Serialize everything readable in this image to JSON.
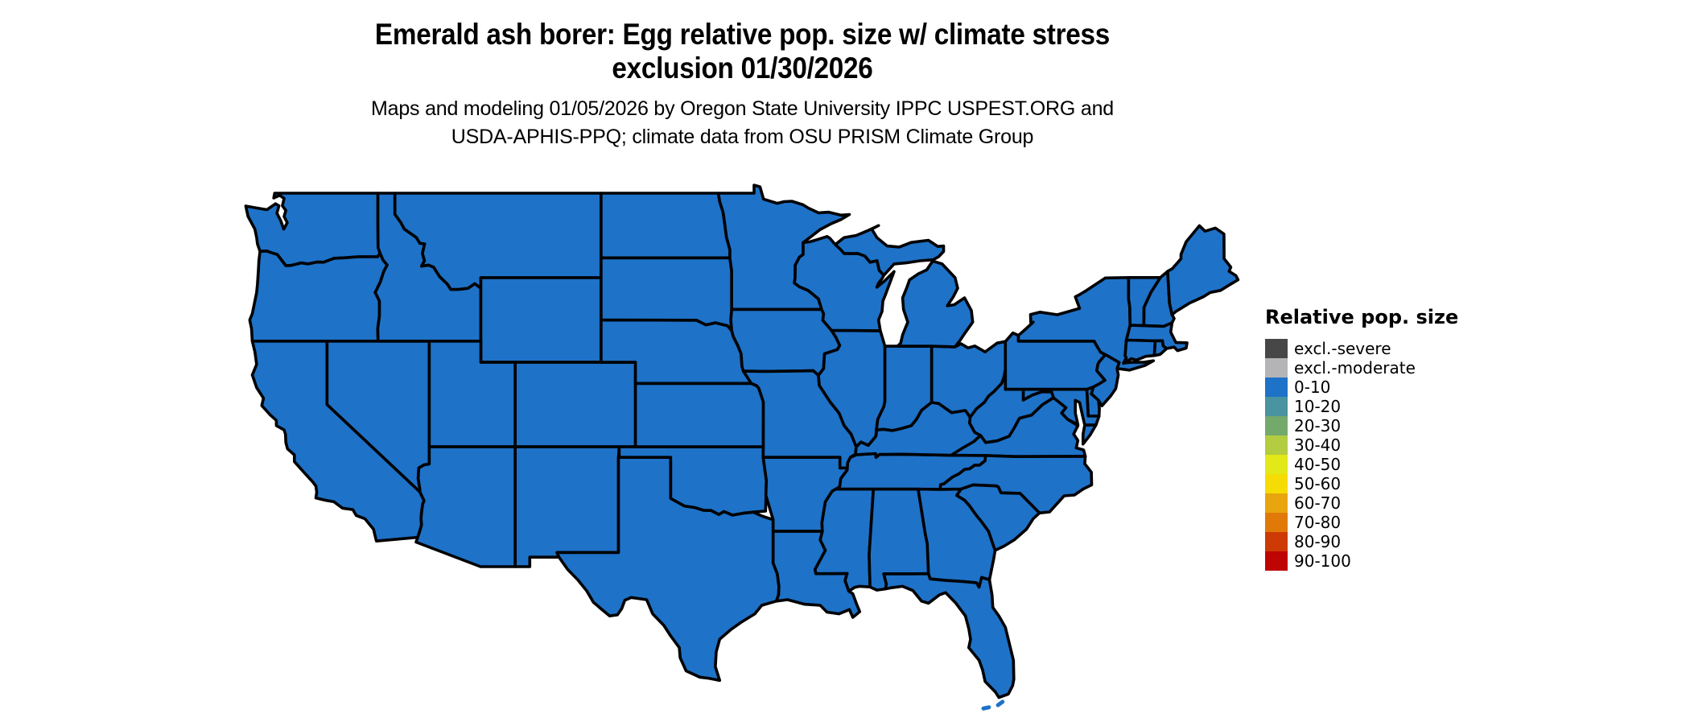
{
  "title": {
    "line1": "Emerald ash borer: Egg relative pop. size w/ climate stress",
    "line2": "exclusion 01/30/2026"
  },
  "subtitle": {
    "line1": "Maps and modeling 01/05/2026 by Oregon State University IPPC USPEST.ORG and",
    "line2": "USDA-APHIS-PPQ; climate data from OSU PRISM Climate Group"
  },
  "legend": {
    "title": "Relative pop. size",
    "items": [
      {
        "label": "excl.-severe",
        "color": "#474747"
      },
      {
        "label": "excl.-moderate",
        "color": "#b4b4b6"
      },
      {
        "label": "0-10",
        "color": "#1e72c8"
      },
      {
        "label": "10-20",
        "color": "#4a93a0"
      },
      {
        "label": "20-30",
        "color": "#74a96c"
      },
      {
        "label": "30-40",
        "color": "#b3cc40"
      },
      {
        "label": "40-50",
        "color": "#e3e818"
      },
      {
        "label": "50-60",
        "color": "#f5dc04"
      },
      {
        "label": "60-70",
        "color": "#e8a50e"
      },
      {
        "label": "70-80",
        "color": "#e07908"
      },
      {
        "label": "80-90",
        "color": "#cd3a06"
      },
      {
        "label": "90-100",
        "color": "#bf0404"
      }
    ]
  },
  "map": {
    "fill_color": "#1e72c8",
    "border_color": "#000000",
    "background_color": "#ffffff",
    "all_states_category": "0-10"
  }
}
